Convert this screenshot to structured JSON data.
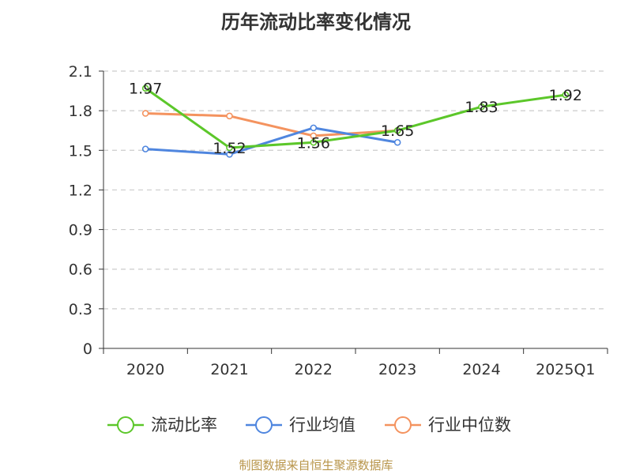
{
  "chart_data": {
    "type": "line",
    "title": "历年流动比率变化情况",
    "categories": [
      "2020",
      "2021",
      "2022",
      "2023",
      "2024",
      "2025Q1"
    ],
    "ylim": [
      0,
      2.1
    ],
    "yticks": [
      "0",
      "0.3",
      "0.6",
      "0.9",
      "1.2",
      "1.5",
      "1.8",
      "2.1"
    ],
    "grid": true,
    "legend_position": "bottom",
    "series": [
      {
        "name": "流动比率",
        "color": "#5cc72a",
        "values": [
          1.97,
          1.52,
          1.56,
          1.65,
          1.83,
          1.92
        ],
        "labels": [
          "1.97",
          "1.52",
          "1.56",
          "1.65",
          "1.83",
          "1.92"
        ]
      },
      {
        "name": "行业均值",
        "color": "#4f86df",
        "values": [
          1.51,
          1.47,
          1.67,
          1.56,
          null,
          null
        ]
      },
      {
        "name": "行业中位数",
        "color": "#f4935f",
        "values": [
          1.78,
          1.76,
          1.61,
          1.65,
          null,
          null
        ]
      }
    ]
  },
  "footer": {
    "source": "制图数据来自恒生聚源数据库"
  }
}
